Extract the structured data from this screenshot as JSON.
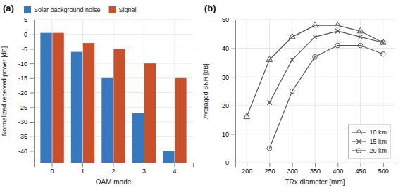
{
  "chart_data": [
    {
      "type": "bar",
      "annotations": [
        {
          "text": "(a)"
        }
      ],
      "x_label": "OAM mode",
      "y_label": "Normalized received power [dB]",
      "categories": [
        "0",
        "1",
        "2",
        "3",
        "4"
      ],
      "series": [
        {
          "name": "Solar background noise",
          "color": "#3878be",
          "values": [
            0.5,
            -6,
            -15,
            -27,
            -40
          ]
        },
        {
          "name": "Signal",
          "color": "#c8502a",
          "values": [
            0.5,
            -3,
            -5,
            -10,
            -15
          ]
        }
      ],
      "ylim": [
        -44,
        5
      ],
      "yticks": [
        -40,
        -35,
        -30,
        -25,
        -20,
        -15,
        -10,
        -5,
        0,
        5
      ],
      "grid": true,
      "legend": "top"
    },
    {
      "type": "line",
      "annotations": [
        {
          "text": "(b)"
        }
      ],
      "x_label": "TRx diameter [mm]",
      "y_label": "Averaged SNR [dB]",
      "x": [
        200,
        250,
        300,
        350,
        400,
        450,
        500
      ],
      "series": [
        {
          "name": "10 km",
          "color": "#555555",
          "marker": "triangle-open",
          "values": [
            16,
            36,
            44,
            48,
            48,
            46,
            42
          ]
        },
        {
          "name": "15 km",
          "color": "#555555",
          "marker": "x",
          "values": [
            null,
            21,
            36,
            44,
            46,
            44,
            42
          ]
        },
        {
          "name": "20 km",
          "color": "#555555",
          "marker": "circle-open",
          "values": [
            null,
            5,
            25,
            37,
            41,
            41,
            38
          ]
        }
      ],
      "xlim": [
        175,
        525
      ],
      "xticks": [
        200,
        250,
        300,
        350,
        400,
        450,
        500
      ],
      "ylim": [
        0,
        50
      ],
      "yticks": [
        0,
        10,
        20,
        30,
        40,
        50
      ],
      "grid": true,
      "legend": "lower right"
    }
  ]
}
